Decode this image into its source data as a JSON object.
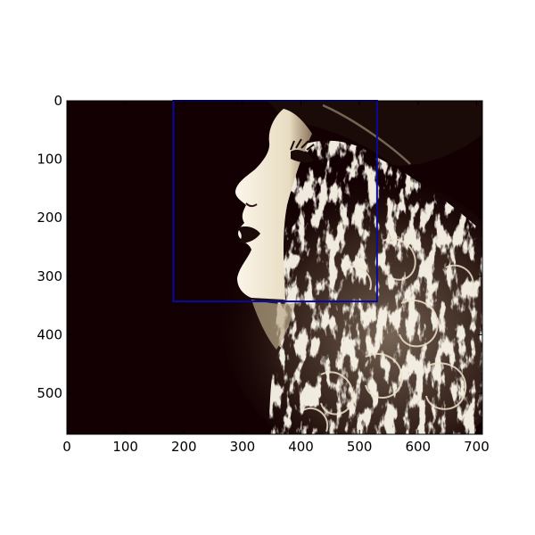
{
  "chart_data": {
    "type": "image",
    "x_axis": {
      "range": [
        0,
        710
      ],
      "ticks": [
        0,
        100,
        200,
        300,
        400,
        500,
        600,
        700
      ],
      "tick_labels": [
        "0",
        "100",
        "200",
        "300",
        "400",
        "500",
        "600",
        "700"
      ]
    },
    "y_axis": {
      "range": [
        0,
        570
      ],
      "inverted": true,
      "ticks": [
        0,
        100,
        200,
        300,
        400,
        500
      ],
      "tick_labels": [
        "0",
        "100",
        "200",
        "300",
        "400",
        "500"
      ]
    },
    "rectangle": {
      "x_range": [
        182,
        530
      ],
      "y_range": [
        0,
        343
      ],
      "color": "#0a0aa0"
    },
    "image": {
      "description_icon": "sepia-portrait-profile-image",
      "background_color": "#120002",
      "highlight_color": "#f4ecd8"
    },
    "grid": false
  }
}
